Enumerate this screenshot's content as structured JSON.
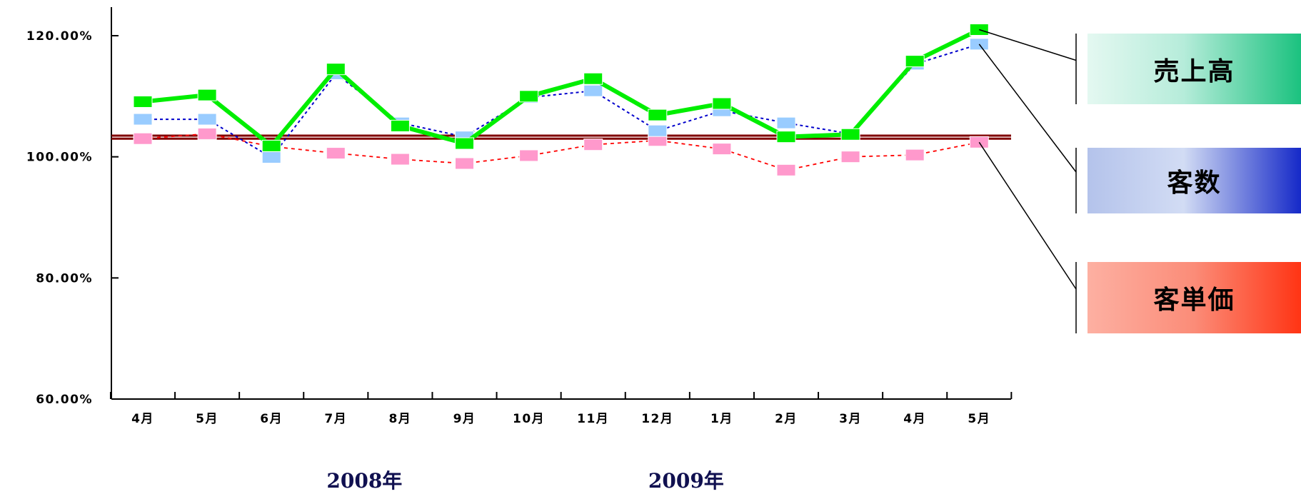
{
  "chart_data": {
    "type": "line",
    "categories": [
      "4月",
      "5月",
      "6月",
      "7月",
      "8月",
      "9月",
      "10月",
      "11月",
      "12月",
      "1月",
      "2月",
      "3月",
      "4月",
      "5月"
    ],
    "year_labels": [
      "2008年",
      "2009年"
    ],
    "ylim": [
      60,
      120
    ],
    "y_ticks": [
      "60.00%",
      "80.00%",
      "100.00%",
      "120.00%"
    ],
    "y_tick_values": [
      60,
      80,
      100,
      120
    ],
    "reference_lines": [
      103.5,
      103.0
    ],
    "legend_placement": "right",
    "series": [
      {
        "name": "客単価",
        "color": "#ff0000",
        "marker_color": "#ff99cc",
        "values": [
          103.0,
          103.8,
          101.7,
          100.6,
          99.6,
          98.9,
          100.2,
          102.0,
          102.7,
          101.3,
          97.8,
          100.0,
          100.3,
          102.4
        ]
      },
      {
        "name": "客数",
        "color": "#0000cc",
        "marker_color": "#99ccff",
        "values": [
          106.2,
          106.2,
          99.9,
          113.7,
          105.6,
          103.3,
          109.8,
          110.9,
          104.3,
          107.6,
          105.6,
          103.8,
          115.3,
          118.6
        ]
      },
      {
        "name": "売上高",
        "color": "#00ee00",
        "marker_color": "#00ee00",
        "values": [
          109.1,
          110.2,
          101.8,
          114.5,
          105.1,
          102.2,
          110.0,
          112.9,
          106.9,
          108.8,
          103.3,
          103.7,
          115.8,
          121.0
        ]
      }
    ]
  },
  "legend": {
    "sales": "売上高",
    "customers": "客数",
    "unit_price": "客単価"
  },
  "colors": {
    "axis": "#000000",
    "reference_line": "#800000"
  }
}
